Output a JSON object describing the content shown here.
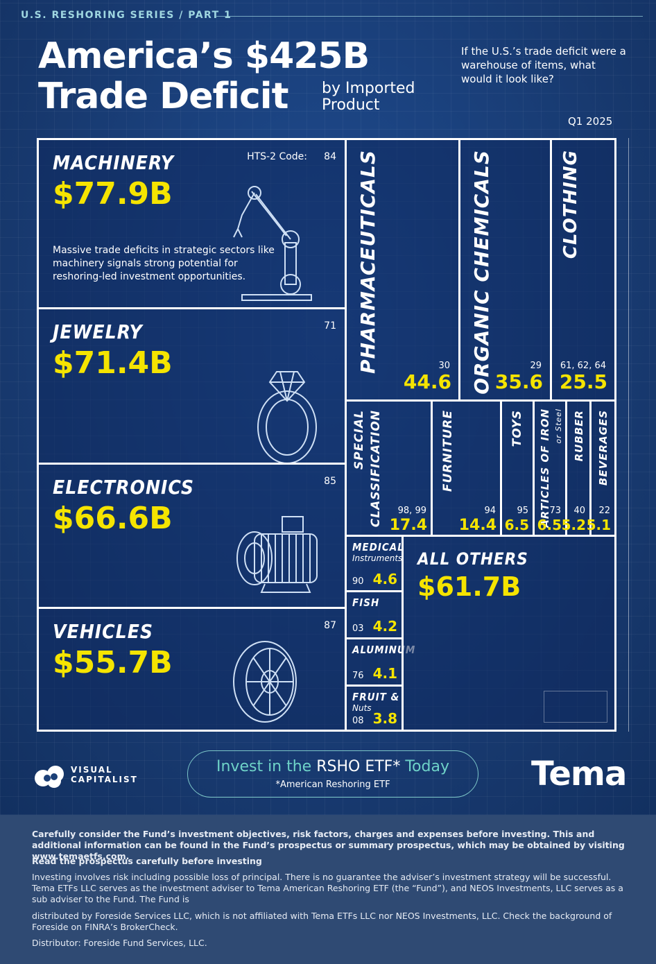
{
  "header": {
    "series": "U.S. RESHORING SERIES / PART 1",
    "title_line1": "America’s $425B",
    "title_line2": "Trade Deficit",
    "subtitle": "by Imported Product",
    "question": "If the U.S.’s trade deficit were a warehouse of items, what would it look like?",
    "period": "Q1 2025"
  },
  "chart_data": {
    "type": "treemap",
    "value_unit": "$B",
    "code_label": "HTS-2 Code:",
    "items": [
      {
        "id": "machinery",
        "name": "MACHINERY",
        "code": "84",
        "value": 77.9,
        "display": "$77.9B"
      },
      {
        "id": "jewelry",
        "name": "JEWELRY",
        "code": "71",
        "value": 71.4,
        "display": "$71.4B"
      },
      {
        "id": "electronics",
        "name": "ELECTRONICS",
        "code": "85",
        "value": 66.6,
        "display": "$66.6B"
      },
      {
        "id": "vehicles",
        "name": "VEHICLES",
        "code": "87",
        "value": 55.7,
        "display": "$55.7B"
      },
      {
        "id": "pharma",
        "name": "PHARMACEUTICALS",
        "code": "30",
        "value": 44.6,
        "display": "44.6"
      },
      {
        "id": "organic",
        "name": "ORGANIC CHEMICALS",
        "code": "29",
        "value": 35.6,
        "display": "35.6"
      },
      {
        "id": "clothing",
        "name": "CLOTHING",
        "code": "61, 62, 64",
        "value": 25.5,
        "display": "25.5"
      },
      {
        "id": "special",
        "name": "SPECIAL CLASSIFICATION",
        "name_l1": "SPECIAL",
        "name_l2": "CLASSIFICATION",
        "code": "98, 99",
        "value": 17.4,
        "display": "17.4"
      },
      {
        "id": "furniture",
        "name": "FURNITURE",
        "code": "94",
        "value": 14.4,
        "display": "14.4"
      },
      {
        "id": "toys",
        "name": "TOYS",
        "code": "95",
        "value": 6.5,
        "display": "6.5"
      },
      {
        "id": "iron",
        "name": "ARTICLES OF IRON",
        "name_sub": "or Steel",
        "code": "73",
        "value": 6.5,
        "display": "6.5"
      },
      {
        "id": "rubber",
        "name": "RUBBER",
        "code": "40",
        "value": 5.2,
        "display": "5.2"
      },
      {
        "id": "beverages",
        "name": "BEVERAGES",
        "code": "22",
        "value": 5.1,
        "display": "5.1"
      },
      {
        "id": "medical",
        "name": "MEDICAL",
        "name_sub": "Instruments",
        "code": "90",
        "value": 4.6,
        "display": "4.6"
      },
      {
        "id": "fish",
        "name": "FISH",
        "code": "03",
        "value": 4.2,
        "display": "4.2"
      },
      {
        "id": "aluminum",
        "name": "ALUMINUM",
        "code": "76",
        "value": 4.1,
        "display": "4.1"
      },
      {
        "id": "fruit",
        "name": "FRUIT &",
        "name_sub": "Nuts",
        "code": "08",
        "value": 3.8,
        "display": "3.8"
      },
      {
        "id": "others",
        "name": "ALL OTHERS",
        "code": "",
        "value": 61.7,
        "display": "$61.7B"
      }
    ],
    "annotation": "Massive trade deficits in strategic sectors like machinery signals strong potential for reshoring-led investment opportunities."
  },
  "footer": {
    "brand_line1": "VISUAL",
    "brand_line2": "CAPITALIST",
    "cta_part1": "Invest in the",
    "cta_part2": "RSHO ETF*",
    "cta_part3": "Today",
    "cta_sub": "*American Reshoring ETF",
    "partner": "Tema"
  },
  "disclaimer": {
    "p1": "Carefully consider the Fund’s investment objectives, risk factors, charges and expenses before investing. This and additional information can be found in the Fund’s prospectus or summary prospectus, which may be obtained by visiting www.temaetfs.com.",
    "p2": "Read the prospectus carefully before investing",
    "p3": "Investing involves risk including possible loss of principal. There is no guarantee the adviser’s investment strategy will be successful. Tema ETFs LLC serves as the investment adviser to Tema American Reshoring ETF (the “Fund”), and NEOS Investments, LLC serves as a sub adviser to the Fund. The Fund is",
    "p4": "distributed by Foreside Services LLC, which is not affiliated with Tema ETFs LLC nor NEOS Investments, LLC. Check the background of Foreside on FINRA’s BrokerCheck.",
    "p5": "Distributor: Foreside Fund Services, LLC."
  },
  "colors": {
    "accent": "#f5e400",
    "background": "#1b3f77",
    "disclaimer_bg": "#2f4a73",
    "teal": "#6fd3c8"
  }
}
